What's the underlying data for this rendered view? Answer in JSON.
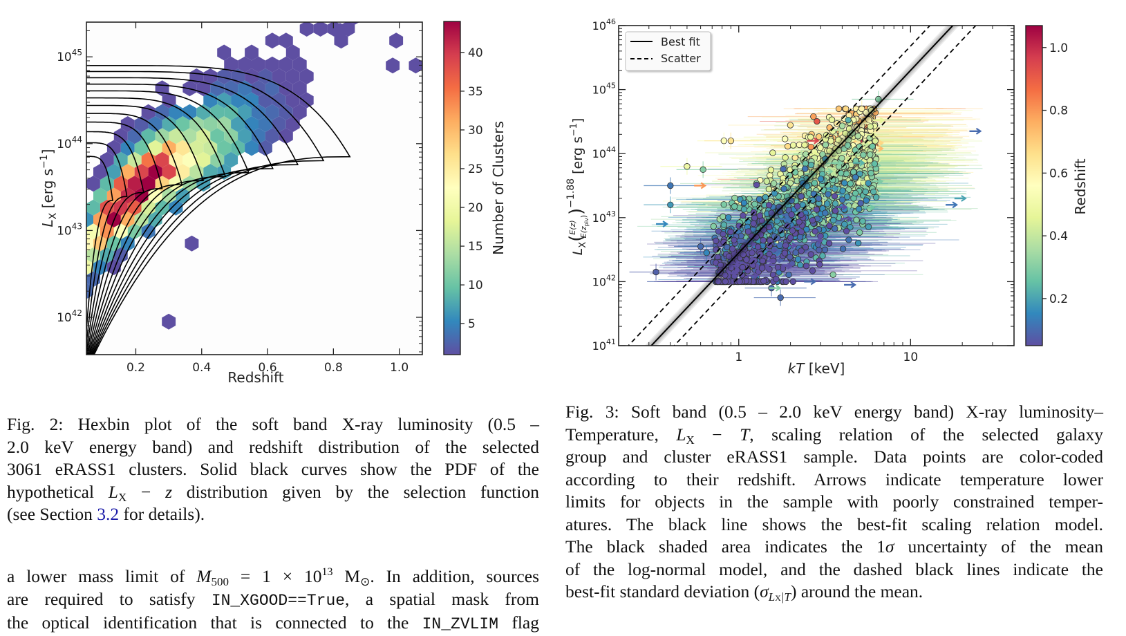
{
  "chart_data": [
    {
      "type": "heatmap",
      "subtype": "hexbin",
      "title": "",
      "xlabel": "Redshift",
      "ylabel": "L_X [erg s^-1]",
      "ylabel_parts": {
        "main": "L",
        "sub": "X",
        "unit": "[erg s",
        "exp": "−1",
        "close": "]"
      },
      "xlim": [
        0.05,
        1.07
      ],
      "ylim_log10": [
        41.57,
        45.4
      ],
      "yscale": "log",
      "xticks": [
        0.2,
        0.4,
        0.6,
        0.8,
        1.0
      ],
      "xtick_labels": [
        "0.2",
        "0.4",
        "0.6",
        "0.8",
        "1.0"
      ],
      "yticks_log10": [
        42,
        43,
        44,
        45
      ],
      "ytick_labels": [
        {
          "base": "10",
          "exp": "42"
        },
        {
          "base": "10",
          "exp": "43"
        },
        {
          "base": "10",
          "exp": "44"
        },
        {
          "base": "10",
          "exp": "45"
        }
      ],
      "colorbar": {
        "label": "Number of Clusters",
        "range": [
          1,
          44
        ],
        "ticks": [
          5,
          10,
          15,
          20,
          25,
          30,
          35,
          40
        ],
        "tick_labels": [
          "5",
          "10",
          "15",
          "20",
          "25",
          "30",
          "35",
          "40"
        ],
        "colormap": "Spectral_r"
      },
      "density_model": {
        "description": "Hexbin counts concentrated along ridge from low-z low-L to high-z high-L",
        "peak_bins": [
          {
            "z": 0.1,
            "logL": 43.25,
            "count": 44
          },
          {
            "z": 0.18,
            "logL": 43.7,
            "count": 42
          },
          {
            "z": 0.21,
            "logL": 43.85,
            "count": 42
          }
        ]
      },
      "contours": {
        "label": "PDF of hypothetical L_X − z distribution (selection function)",
        "count": 12,
        "color": "#000000"
      }
    },
    {
      "type": "scatter",
      "title": "",
      "xlabel": "kT [keV]",
      "ylabel": "L_X (E(z)/E(z_piv))^-1.88 [erg s^-1]",
      "xscale": "log",
      "yscale": "log",
      "xlim": [
        0.2,
        40
      ],
      "ylim_log10": [
        41,
        46
      ],
      "xticks": [
        1,
        10
      ],
      "xtick_labels": [
        "1",
        "10"
      ],
      "yticks_log10": [
        41,
        42,
        43,
        44,
        45,
        46
      ],
      "ytick_labels": [
        {
          "base": "10",
          "exp": "41"
        },
        {
          "base": "10",
          "exp": "42"
        },
        {
          "base": "10",
          "exp": "43"
        },
        {
          "base": "10",
          "exp": "44"
        },
        {
          "base": "10",
          "exp": "45"
        },
        {
          "base": "10",
          "exp": "46"
        }
      ],
      "legend": {
        "position": "top-left",
        "entries": [
          {
            "label": "Best fit",
            "style": "solid"
          },
          {
            "label": "Scatter",
            "style": "dashed"
          }
        ]
      },
      "best_fit": {
        "log10L_at_kT1": 42.45,
        "slope": 2.85
      },
      "scatter_dex": 0.38,
      "colorbar": {
        "label": "Redshift",
        "range": [
          0.05,
          1.07
        ],
        "ticks": [
          0.2,
          0.4,
          0.6,
          0.8,
          1.0
        ],
        "tick_labels": [
          "0.2",
          "0.4",
          "0.6",
          "0.8",
          "1.0"
        ],
        "colormap": "Spectral_r"
      },
      "points_summary": {
        "description": "Thousands of clusters; bulk spanning kT 0.8–8 keV and L 1e42–5e44; arrows mark kT lower limits",
        "sample": [
          {
            "kT": 0.4,
            "logL": 43.5,
            "z": 0.12
          },
          {
            "kT": 0.4,
            "logL": 43.2,
            "z": 0.18
          },
          {
            "kT": 0.33,
            "logL": 42.15,
            "z": 0.08
          },
          {
            "kT": 0.6,
            "logL": 42.55,
            "z": 0.1
          },
          {
            "kT": 0.65,
            "logL": 42.45,
            "z": 0.15
          },
          {
            "kT": 0.82,
            "logL": 44.2,
            "z": 0.55
          },
          {
            "kT": 0.9,
            "logL": 44.2,
            "z": 0.65
          },
          {
            "kT": 0.5,
            "logL": 43.8,
            "z": 0.5
          },
          {
            "kT": 0.62,
            "logL": 43.75,
            "z": 0.3
          },
          {
            "kT": 1.75,
            "logL": 41.75,
            "z": 0.1
          },
          {
            "kT": 1.55,
            "logL": 41.9,
            "z": 0.1
          },
          {
            "kT": 6.5,
            "logL": 44.85,
            "z": 0.3
          },
          {
            "kT": 5.2,
            "logL": 44.7,
            "z": 0.6
          }
        ],
        "lower_limit_arrows": [
          {
            "kT": 0.33,
            "logL": 42.9,
            "z": 0.15
          },
          {
            "kT": 0.55,
            "logL": 43.5,
            "z": 0.8
          },
          {
            "kT": 1.5,
            "logL": 41.9,
            "z": 0.3
          },
          {
            "kT": 2.4,
            "logL": 42.0,
            "z": 0.1
          },
          {
            "kT": 4.1,
            "logL": 41.95,
            "z": 0.1
          },
          {
            "kT": 22,
            "logL": 44.35,
            "z": 0.1
          },
          {
            "kT": 2.5,
            "logL": 44.2,
            "z": 0.95
          },
          {
            "kT": 16,
            "logL": 43.2,
            "z": 0.12
          },
          {
            "kT": 18,
            "logL": 43.3,
            "z": 0.2
          }
        ]
      }
    }
  ],
  "captions": {
    "fig2": {
      "lines": [
        "Fig. 2: Hexbin plot of the soft band X-ray luminosity (0.5 –",
        "2.0 keV energy band) and redshift distribution of the selected",
        "3061 eRASS1 clusters. Solid black curves show the PDF of the"
      ],
      "line4_pre": "hypothetical ",
      "line4_L": "L",
      "line4_sub": "X",
      "line4_mid": " − ",
      "line4_z": "z",
      "line4_post": " distribution given by the selection function",
      "line5_pre": "(see Section ",
      "line5_link": "3.2",
      "line5_post": " for details)."
    },
    "fig3": {
      "line1": "Fig. 3: Soft band (0.5 – 2.0 keV energy band) X-ray luminosity–",
      "line2_pre": "Temperature, ",
      "line2_L": "L",
      "line2_sub": "X",
      "line2_mid": " − ",
      "line2_T": "T",
      "line2_post": ", scaling relation of the selected galaxy",
      "line3": "group and cluster eRASS1 sample. Data points are color-coded",
      "line4": "according to their redshift. Arrows indicate temperature lower",
      "line5": "limits for objects in the sample with poorly constrained temper-",
      "line6": "atures. The black line shows the best-fit scaling relation model.",
      "line7_pre": "The black shaded area indicates the 1",
      "line7_sigma": "σ",
      "line7_post": " uncertainty of the mean",
      "line8": "of the log-normal model, and the dashed black lines indicate the",
      "line9_pre": "best-fit standard deviation (",
      "line9_sigma": "σ",
      "line9_sub": "L",
      "line9_subsub": "X",
      "line9_subpost": "|T",
      "line9_post": ") around the mean."
    },
    "body": {
      "line1_pre": "a lower mass limit of ",
      "line1_M": "M",
      "line1_sub": "500",
      "line1_mid": " = 1 × 10",
      "line1_exp": "13",
      "line1_unit": " M",
      "line1_sun": "⊙",
      "line1_post": ". In addition, sources",
      "line2_pre": "are required to satisfy ",
      "line2_code": "IN_XGOOD==True",
      "line2_post": ", a spatial mask from",
      "line3_pre": "the optical identification that is connected to the ",
      "line3_code": "IN_ZVLIM",
      "line3_post": " flag"
    }
  }
}
